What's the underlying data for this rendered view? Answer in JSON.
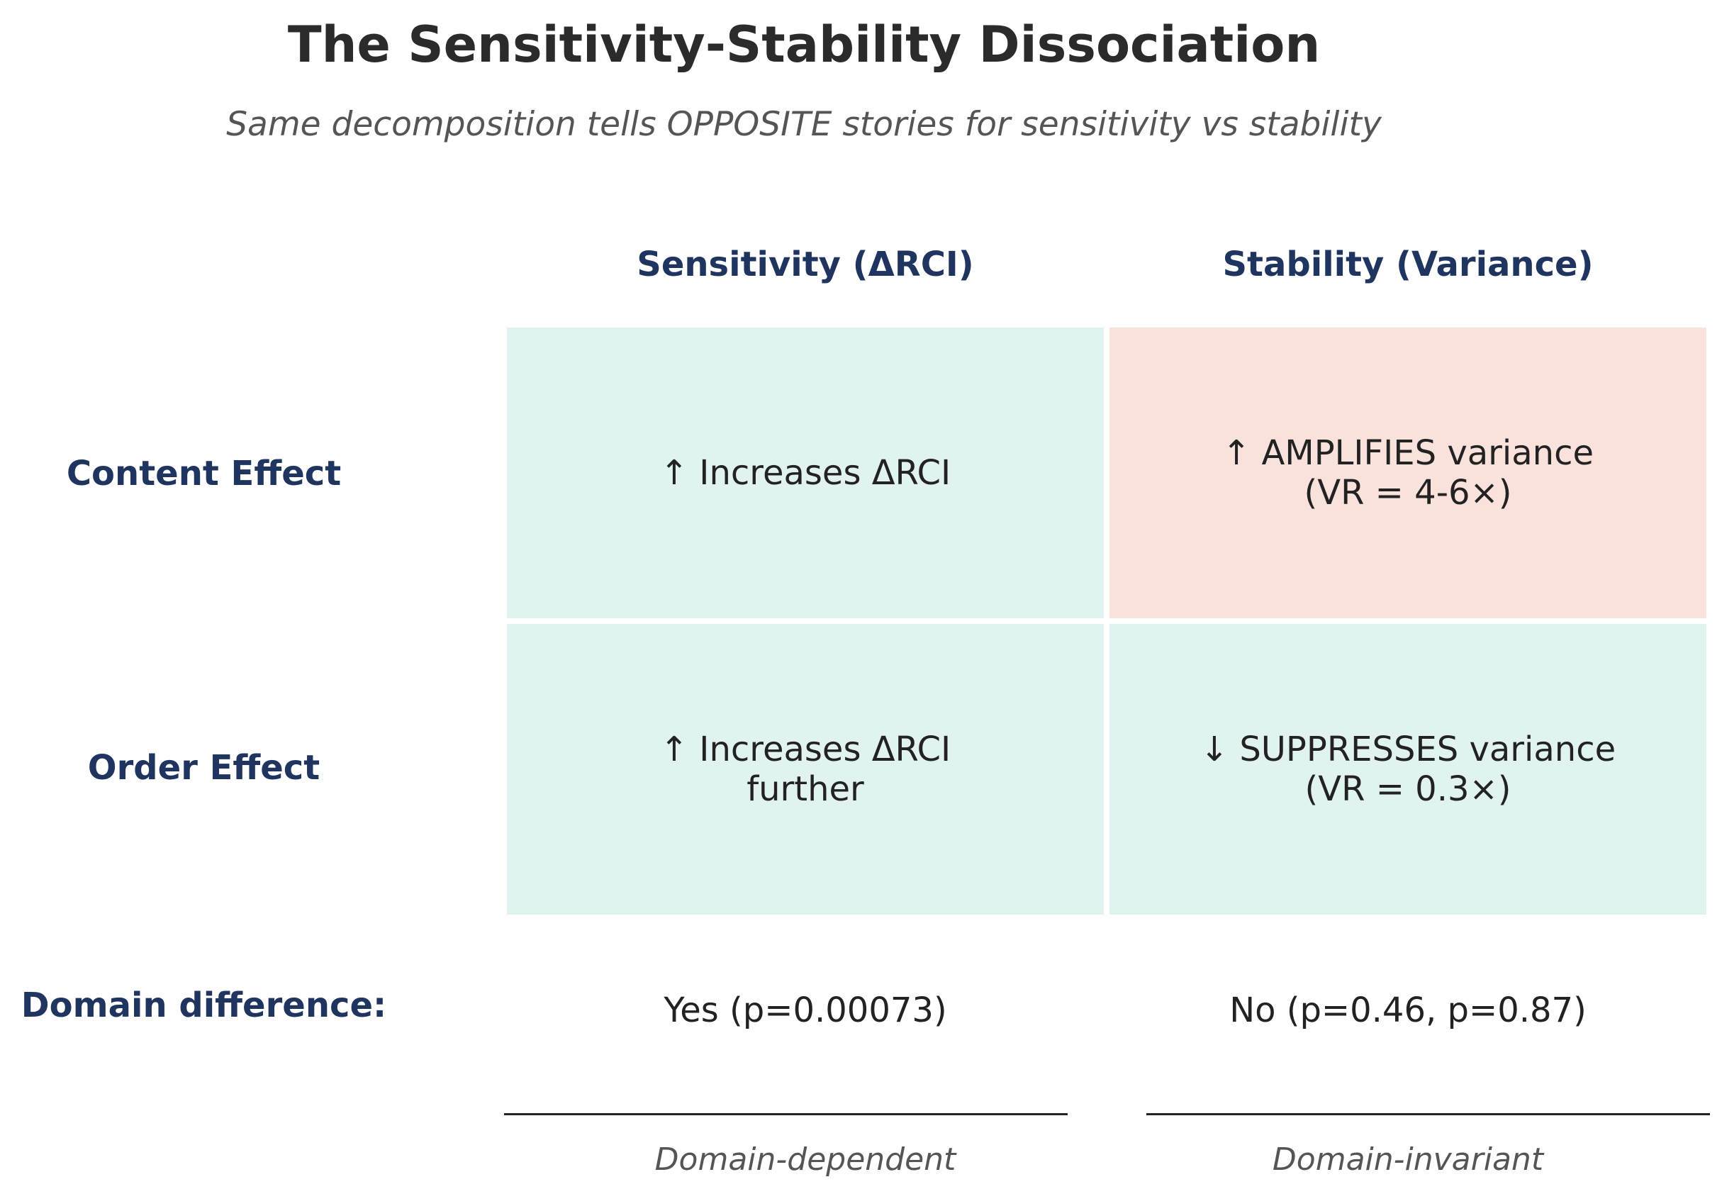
{
  "title": "The Sensitivity-Stability Dissociation",
  "subtitle": "Same decomposition tells OPPOSITE stories for sensitivity vs stability",
  "columns": {
    "sensitivity": "Sensitivity (ΔRCI)",
    "stability": "Stability (Variance)"
  },
  "rows": {
    "content": {
      "label": "Content Effect",
      "sensitivity": "↑ Increases ΔRCI",
      "stability_line1": "↑ AMPLIFIES variance",
      "stability_line2": "(VR = 4-6×)"
    },
    "order": {
      "label": "Order Effect",
      "sensitivity_line1": "↑ Increases ΔRCI",
      "sensitivity_line2": "further",
      "stability_line1": "↓ SUPPRESSES variance",
      "stability_line2": "(VR = 0.3×)"
    }
  },
  "domain": {
    "label": "Domain difference:",
    "sensitivity": "Yes (p=0.00073)",
    "stability": "No (p=0.46, p=0.87)"
  },
  "captions": {
    "sensitivity": "Domain-dependent",
    "stability": "Domain-invariant"
  },
  "colors": {
    "increase_cell": "#e0f3f0",
    "amplify_cell": "#f9e1dc",
    "header_text": "#1f3560",
    "title_text": "#2b2b2b"
  }
}
